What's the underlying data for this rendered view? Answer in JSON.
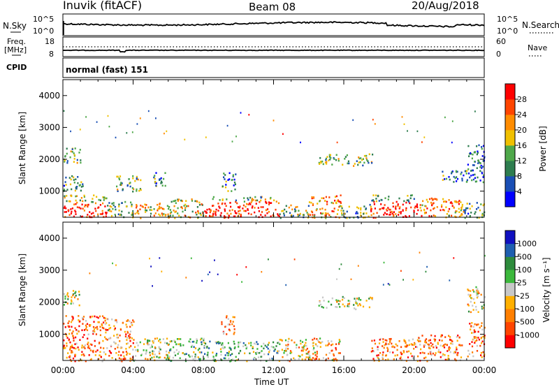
{
  "header": {
    "title": "Inuvik (fitACF)",
    "beam": "Beam 08",
    "date": "20/Aug/2018"
  },
  "top_panels": {
    "nsky_label": "N.Sky",
    "nsearch_label": "N.Search",
    "noise_ticks_left": [
      "10^5",
      "10^0"
    ],
    "noise_ticks_right": [
      "10^5",
      "10^0"
    ],
    "freq_label": "Freq.",
    "freq_unit": "[MHz]",
    "freq_ticks": [
      "18",
      "8"
    ],
    "nave_label": "Nave",
    "nave_ticks": [
      "60",
      "0"
    ],
    "cpid_label": "CPID",
    "cpid_value": "normal (fast) 151"
  },
  "colors": {
    "power_scale": [
      "#0000ff",
      "#1a4fb5",
      "#2e7d4f",
      "#4fa84a",
      "#f0c000",
      "#ff8c00",
      "#ff4500",
      "#ff0000"
    ],
    "velocity_scale": [
      "#ff0000",
      "#ff4500",
      "#ff7f00",
      "#ffb000",
      "#c8c8c8",
      "#3cb83c",
      "#2e8b3c",
      "#1f5fb0",
      "#1010c0"
    ]
  },
  "chart_data": [
    {
      "type": "heatmap",
      "name": "power",
      "ylabel": "Slant Range [km]",
      "ylim": [
        180,
        4500
      ],
      "y_ticks": [
        1000,
        2000,
        3000,
        4000
      ],
      "xlim": [
        0,
        24
      ],
      "colorbar_label": "Power [dB]",
      "colorbar_ticks": [
        "4",
        "8",
        "12",
        "16",
        "20",
        "24",
        "28"
      ],
      "colorbar_range": [
        0,
        30
      ],
      "bands": [
        {
          "start": 0.0,
          "end": 2.5,
          "low": 180,
          "high": 650,
          "level": 0.95
        },
        {
          "start": 0.0,
          "end": 2.5,
          "low": 650,
          "high": 900,
          "level": 0.5
        },
        {
          "start": 0.0,
          "end": 1.0,
          "low": 1900,
          "high": 2400,
          "level": 0.4
        },
        {
          "start": 0.0,
          "end": 1.2,
          "low": 1000,
          "high": 1500,
          "level": 0.35
        },
        {
          "start": 2.5,
          "end": 4.0,
          "low": 180,
          "high": 700,
          "level": 0.4
        },
        {
          "start": 3.0,
          "end": 4.5,
          "low": 1000,
          "high": 1500,
          "level": 0.45
        },
        {
          "start": 4.0,
          "end": 6.0,
          "low": 180,
          "high": 650,
          "level": 0.6
        },
        {
          "start": 5.0,
          "end": 5.8,
          "low": 1100,
          "high": 1600,
          "level": 0.3
        },
        {
          "start": 6.0,
          "end": 8.0,
          "low": 180,
          "high": 800,
          "level": 0.55
        },
        {
          "start": 8.0,
          "end": 12.3,
          "low": 180,
          "high": 700,
          "level": 0.9
        },
        {
          "start": 8.5,
          "end": 12.0,
          "low": 700,
          "high": 850,
          "level": 0.45
        },
        {
          "start": 9.0,
          "end": 9.8,
          "low": 1000,
          "high": 1600,
          "level": 0.3
        },
        {
          "start": 12.3,
          "end": 14.0,
          "low": 180,
          "high": 600,
          "level": 0.45
        },
        {
          "start": 14.0,
          "end": 15.8,
          "low": 180,
          "high": 900,
          "level": 0.65
        },
        {
          "start": 14.5,
          "end": 16.3,
          "low": 1850,
          "high": 2200,
          "level": 0.4
        },
        {
          "start": 16.5,
          "end": 17.6,
          "low": 1800,
          "high": 2200,
          "level": 0.45
        },
        {
          "start": 15.8,
          "end": 17.5,
          "low": 180,
          "high": 600,
          "level": 0.35
        },
        {
          "start": 17.5,
          "end": 20.2,
          "low": 180,
          "high": 700,
          "level": 0.95
        },
        {
          "start": 17.5,
          "end": 20.0,
          "low": 700,
          "high": 900,
          "level": 0.4
        },
        {
          "start": 20.2,
          "end": 22.8,
          "low": 180,
          "high": 800,
          "level": 0.7
        },
        {
          "start": 21.5,
          "end": 23.0,
          "low": 1300,
          "high": 1700,
          "level": 0.3
        },
        {
          "start": 22.8,
          "end": 24.0,
          "low": 180,
          "high": 700,
          "level": 0.35
        },
        {
          "start": 23.0,
          "end": 24.0,
          "low": 1300,
          "high": 2500,
          "level": 0.25
        }
      ]
    },
    {
      "type": "heatmap",
      "name": "velocity",
      "ylabel": "Slant Range [km]",
      "ylim": [
        180,
        4500
      ],
      "y_ticks": [
        1000,
        2000,
        3000,
        4000
      ],
      "xlim": [
        0,
        24
      ],
      "xlabel": "Time UT",
      "x_ticks": [
        "00:00",
        "04:00",
        "08:00",
        "12:00",
        "16:00",
        "20:00",
        "00:00"
      ],
      "colorbar_label": "Velocity [m s⁻¹]",
      "colorbar_ticks": [
        "-1000",
        "-500",
        "-100",
        "-25",
        "25",
        "100",
        "500",
        "1000"
      ],
      "bands": [
        {
          "start": 0.0,
          "end": 2.5,
          "low": 180,
          "high": 1600,
          "level": 0.25
        },
        {
          "start": 0.0,
          "end": 1.0,
          "low": 1900,
          "high": 2400,
          "level": 0.5
        },
        {
          "start": 2.5,
          "end": 4.0,
          "low": 180,
          "high": 1500,
          "level": 0.3
        },
        {
          "start": 4.0,
          "end": 6.0,
          "low": 180,
          "high": 900,
          "level": 0.5
        },
        {
          "start": 6.0,
          "end": 8.0,
          "low": 180,
          "high": 900,
          "level": 0.6
        },
        {
          "start": 8.0,
          "end": 12.3,
          "low": 180,
          "high": 800,
          "level": 0.62
        },
        {
          "start": 9.0,
          "end": 9.8,
          "low": 1000,
          "high": 1600,
          "level": 0.3
        },
        {
          "start": 12.3,
          "end": 14.0,
          "low": 180,
          "high": 900,
          "level": 0.4
        },
        {
          "start": 14.0,
          "end": 15.8,
          "low": 180,
          "high": 900,
          "level": 0.35
        },
        {
          "start": 14.5,
          "end": 16.3,
          "low": 1850,
          "high": 2200,
          "level": 0.5
        },
        {
          "start": 16.5,
          "end": 17.6,
          "low": 1800,
          "high": 2200,
          "level": 0.5
        },
        {
          "start": 17.5,
          "end": 20.2,
          "low": 180,
          "high": 900,
          "level": 0.3
        },
        {
          "start": 20.2,
          "end": 22.8,
          "low": 180,
          "high": 1000,
          "level": 0.28
        },
        {
          "start": 23.0,
          "end": 24.0,
          "low": 300,
          "high": 1400,
          "level": 0.25
        },
        {
          "start": 23.0,
          "end": 24.0,
          "low": 1700,
          "high": 2500,
          "level": 0.45
        }
      ]
    }
  ]
}
